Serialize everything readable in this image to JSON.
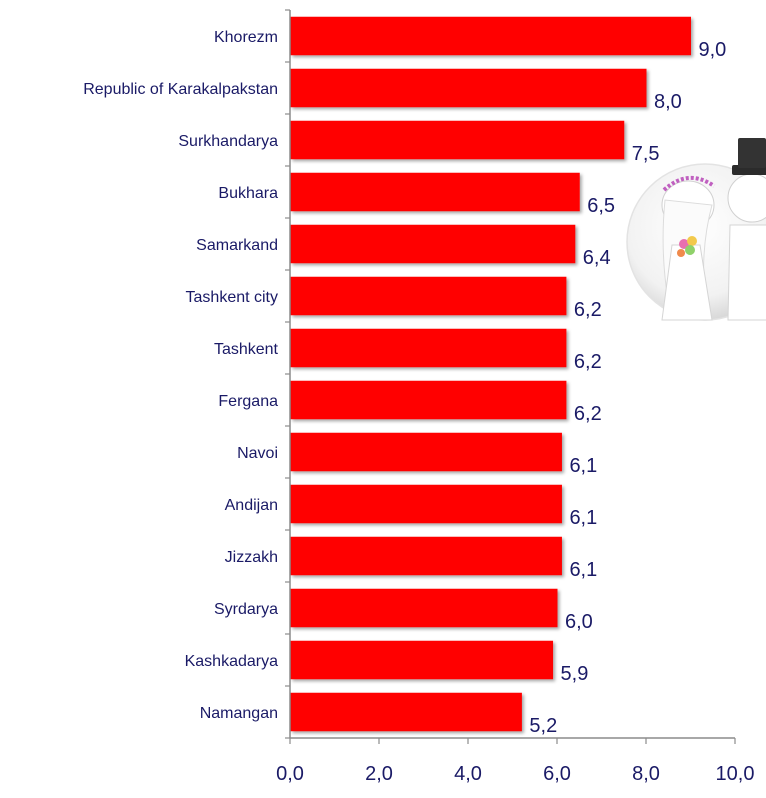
{
  "chart_data": {
    "type": "bar",
    "orientation": "horizontal",
    "categories": [
      "Khorezm",
      "Republic of Karakalpakstan",
      "Surkhandarya",
      "Bukhara",
      "Samarkand",
      "Tashkent city",
      "Tashkent",
      "Fergana",
      "Navoi",
      "Andijan",
      "Jizzakh",
      "Syrdarya",
      "Kashkadarya",
      "Namangan"
    ],
    "values": [
      9.0,
      8.0,
      7.5,
      6.5,
      6.4,
      6.2,
      6.2,
      6.2,
      6.1,
      6.1,
      6.1,
      6.0,
      5.9,
      5.2
    ],
    "data_labels": [
      "9,0",
      "8,0",
      "7,5",
      "6,5",
      "6,4",
      "6,2",
      "6,2",
      "6,2",
      "6,1",
      "6,1",
      "6,1",
      "6,0",
      "5,9",
      "5,2"
    ],
    "xlim": [
      0,
      10
    ],
    "x_ticks": [
      0,
      2,
      4,
      6,
      8,
      10
    ],
    "x_tick_labels": [
      "0,0",
      "2,0",
      "4,0",
      "6,0",
      "8,0",
      "10,0"
    ],
    "title": "",
    "xlabel": "",
    "ylabel": "",
    "grid": false,
    "legend": false,
    "bar_color": "#ff0000",
    "text_color": "#1a1a66"
  },
  "decoration": {
    "icon": "wedding-couple-icon"
  }
}
